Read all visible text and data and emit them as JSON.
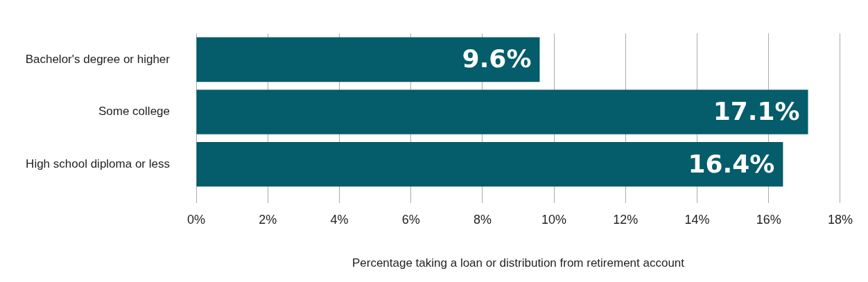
{
  "chart_data": {
    "type": "bar",
    "orientation": "horizontal",
    "xlabel": "Percentage taking a loan or distribution from retirement account",
    "categories": [
      "Bachelor's degree or higher",
      "Some college",
      "High school diploma or less"
    ],
    "values": [
      9.6,
      17.1,
      16.4
    ],
    "color": "#055c6b",
    "value_labels": [
      "9.6%",
      "17.1%",
      "16.4%"
    ],
    "xlim": [
      0,
      18
    ],
    "xticks": [
      {
        "value": 0,
        "label": "0%"
      },
      {
        "value": 2,
        "label": "2%"
      },
      {
        "value": 4,
        "label": "4%"
      },
      {
        "value": 6,
        "label": "6%"
      },
      {
        "value": 8,
        "label": "8%"
      },
      {
        "value": 10,
        "label": "10%"
      },
      {
        "value": 12,
        "label": "12%"
      },
      {
        "value": 14,
        "label": "14%"
      },
      {
        "value": 16,
        "label": "16%"
      },
      {
        "value": 18,
        "label": "18%"
      }
    ],
    "grid": "x",
    "legend": false
  }
}
